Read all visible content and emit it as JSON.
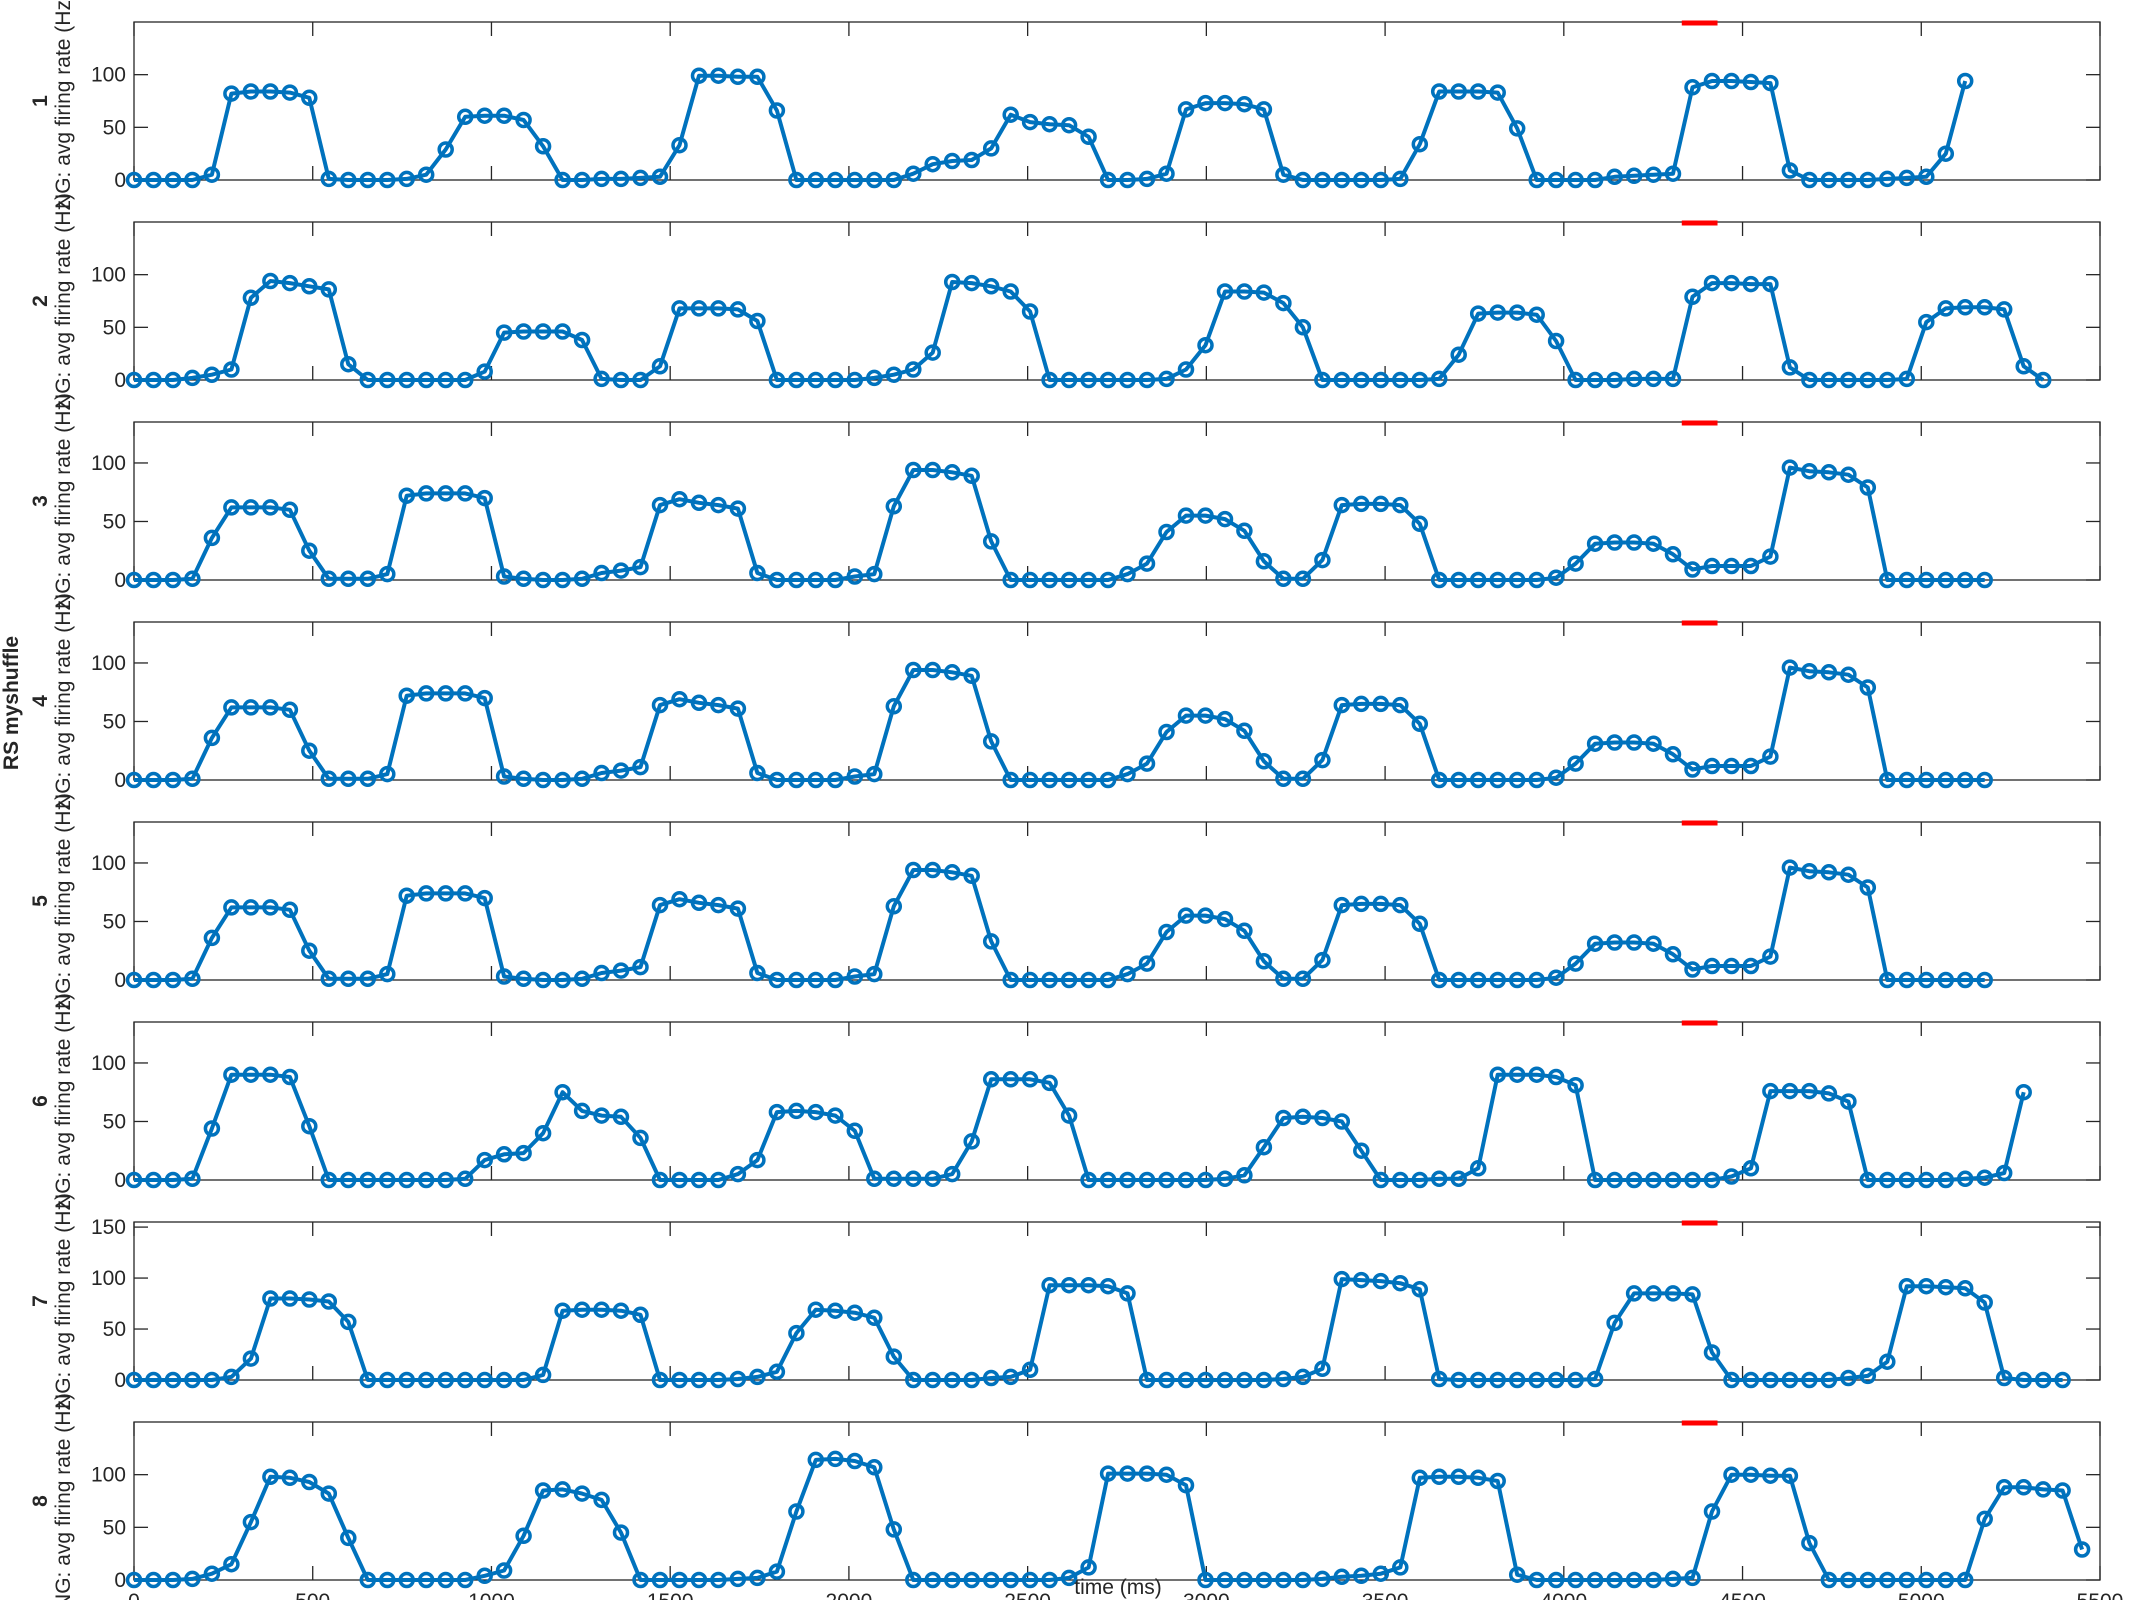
{
  "figure": {
    "suptitle": "RS myshuffle",
    "ylabel": "NG: avg firing rate (Hz)",
    "xlabel": "time (ms)"
  },
  "colors": {
    "series": "#0072BD",
    "stimulus_bar": "#FF0000",
    "axes": "#262626"
  },
  "chart_data": [
    {
      "type": "line",
      "panel_label": "1",
      "ylim": [
        0,
        150
      ],
      "yticks": [
        0,
        50,
        100
      ],
      "values": [
        0,
        0,
        0,
        0,
        5,
        82,
        84,
        84,
        83,
        78,
        1,
        0,
        0,
        0,
        1,
        5,
        29,
        60,
        61,
        61,
        57,
        32,
        0,
        0,
        1,
        1,
        2,
        3,
        33,
        99,
        99,
        98,
        98,
        66,
        0,
        0,
        0,
        0,
        0,
        0,
        6,
        15,
        18,
        19,
        30,
        62,
        55,
        53,
        52,
        41,
        0,
        0,
        1,
        6,
        67,
        73,
        73,
        72,
        67,
        5,
        0,
        0,
        0,
        0,
        0,
        1,
        34,
        84,
        84,
        84,
        83,
        49,
        0,
        0,
        0,
        0,
        3,
        4,
        5,
        6,
        88,
        94,
        94,
        93,
        92,
        9,
        0,
        0,
        0,
        0,
        1,
        2,
        3,
        25,
        94
      ]
    },
    {
      "type": "line",
      "panel_label": "2",
      "ylim": [
        0,
        150
      ],
      "yticks": [
        0,
        50,
        100
      ],
      "values": [
        0,
        0,
        0,
        2,
        5,
        10,
        78,
        94,
        92,
        89,
        86,
        15,
        0,
        0,
        0,
        0,
        0,
        0,
        8,
        45,
        46,
        46,
        46,
        38,
        1,
        0,
        0,
        13,
        68,
        68,
        68,
        67,
        56,
        0,
        0,
        0,
        0,
        0,
        2,
        5,
        10,
        26,
        93,
        92,
        89,
        84,
        65,
        0,
        0,
        0,
        0,
        0,
        0,
        1,
        10,
        33,
        84,
        84,
        83,
        73,
        50,
        0,
        0,
        0,
        0,
        0,
        0,
        1,
        24,
        63,
        64,
        64,
        62,
        37,
        0,
        0,
        0,
        1,
        1,
        1,
        79,
        92,
        92,
        91,
        91,
        12,
        0,
        0,
        0,
        0,
        0,
        1,
        55,
        68,
        69,
        69,
        67,
        13,
        0
      ]
    },
    {
      "type": "line",
      "panel_label": "3",
      "ylim": [
        0,
        135
      ],
      "yticks": [
        0,
        50,
        100
      ],
      "values": [
        0,
        0,
        0,
        1,
        36,
        62,
        62,
        62,
        60,
        25,
        1,
        1,
        1,
        5,
        72,
        74,
        74,
        74,
        70,
        3,
        1,
        0,
        0,
        1,
        6,
        8,
        11,
        64,
        69,
        66,
        64,
        61,
        6,
        0,
        0,
        0,
        0,
        3,
        5,
        63,
        94,
        94,
        92,
        89,
        33,
        0,
        0,
        0,
        0,
        0,
        0,
        5,
        14,
        41,
        55,
        55,
        52,
        42,
        16,
        1,
        1,
        17,
        64,
        65,
        65,
        64,
        48,
        0,
        0,
        0,
        0,
        0,
        0,
        2,
        14,
        31,
        32,
        32,
        31,
        22,
        9,
        12,
        12,
        12,
        20,
        96,
        93,
        92,
        90,
        79,
        0,
        0,
        0,
        0,
        0,
        0
      ]
    },
    {
      "type": "line",
      "panel_label": "4",
      "ylim": [
        0,
        135
      ],
      "yticks": [
        0,
        50,
        100
      ],
      "values": [
        0,
        0,
        0,
        1,
        36,
        62,
        62,
        62,
        60,
        25,
        1,
        1,
        1,
        5,
        72,
        74,
        74,
        74,
        70,
        3,
        1,
        0,
        0,
        1,
        6,
        8,
        11,
        64,
        69,
        66,
        64,
        61,
        6,
        0,
        0,
        0,
        0,
        3,
        5,
        63,
        94,
        94,
        92,
        89,
        33,
        0,
        0,
        0,
        0,
        0,
        0,
        5,
        14,
        41,
        55,
        55,
        52,
        42,
        16,
        1,
        1,
        17,
        64,
        65,
        65,
        64,
        48,
        0,
        0,
        0,
        0,
        0,
        0,
        2,
        14,
        31,
        32,
        32,
        31,
        22,
        9,
        12,
        12,
        12,
        20,
        96,
        93,
        92,
        90,
        79,
        0,
        0,
        0,
        0,
        0,
        0
      ]
    },
    {
      "type": "line",
      "panel_label": "5",
      "ylim": [
        0,
        135
      ],
      "yticks": [
        0,
        50,
        100
      ],
      "values": [
        0,
        0,
        0,
        1,
        36,
        62,
        62,
        62,
        60,
        25,
        1,
        1,
        1,
        5,
        72,
        74,
        74,
        74,
        70,
        3,
        1,
        0,
        0,
        1,
        6,
        8,
        11,
        64,
        69,
        66,
        64,
        61,
        6,
        0,
        0,
        0,
        0,
        3,
        5,
        63,
        94,
        94,
        92,
        89,
        33,
        0,
        0,
        0,
        0,
        0,
        0,
        5,
        14,
        41,
        55,
        55,
        52,
        42,
        16,
        1,
        1,
        17,
        64,
        65,
        65,
        64,
        48,
        0,
        0,
        0,
        0,
        0,
        0,
        2,
        14,
        31,
        32,
        32,
        31,
        22,
        9,
        12,
        12,
        12,
        20,
        96,
        93,
        92,
        90,
        79,
        0,
        0,
        0,
        0,
        0,
        0
      ]
    },
    {
      "type": "line",
      "panel_label": "6",
      "ylim": [
        0,
        135
      ],
      "yticks": [
        0,
        50,
        100
      ],
      "values": [
        0,
        0,
        0,
        1,
        44,
        90,
        90,
        90,
        88,
        46,
        0,
        0,
        0,
        0,
        0,
        0,
        0,
        1,
        17,
        22,
        23,
        40,
        75,
        59,
        55,
        54,
        36,
        0,
        0,
        0,
        0,
        5,
        17,
        58,
        59,
        58,
        55,
        42,
        1,
        1,
        1,
        1,
        5,
        33,
        86,
        86,
        86,
        83,
        55,
        0,
        0,
        0,
        0,
        0,
        0,
        0,
        1,
        4,
        28,
        53,
        54,
        53,
        50,
        25,
        0,
        0,
        0,
        1,
        1,
        10,
        90,
        90,
        90,
        88,
        81,
        0,
        0,
        0,
        0,
        0,
        0,
        0,
        3,
        10,
        76,
        76,
        76,
        74,
        67,
        0,
        0,
        0,
        0,
        0,
        1,
        2,
        6,
        75
      ]
    },
    {
      "type": "line",
      "panel_label": "7",
      "ylim": [
        0,
        155
      ],
      "yticks": [
        0,
        50,
        100,
        150
      ],
      "values": [
        0,
        0,
        0,
        0,
        0,
        3,
        21,
        80,
        80,
        79,
        77,
        57,
        0,
        0,
        0,
        0,
        0,
        0,
        0,
        0,
        0,
        5,
        68,
        69,
        69,
        68,
        64,
        0,
        0,
        0,
        0,
        1,
        3,
        8,
        46,
        69,
        68,
        66,
        61,
        23,
        0,
        0,
        0,
        0,
        2,
        3,
        10,
        93,
        93,
        93,
        92,
        85,
        0,
        0,
        0,
        0,
        0,
        0,
        0,
        1,
        3,
        11,
        99,
        98,
        97,
        95,
        89,
        1,
        0,
        0,
        0,
        0,
        0,
        0,
        0,
        1,
        56,
        85,
        85,
        85,
        84,
        27,
        0,
        0,
        0,
        0,
        0,
        0,
        2,
        4,
        18,
        92,
        92,
        91,
        90,
        76,
        2,
        0,
        0,
        0
      ]
    },
    {
      "type": "line",
      "panel_label": "8",
      "ylim": [
        0,
        150
      ],
      "yticks": [
        0,
        50,
        100
      ],
      "values": [
        0,
        0,
        0,
        1,
        6,
        15,
        55,
        98,
        97,
        93,
        82,
        40,
        0,
        0,
        0,
        0,
        0,
        0,
        4,
        9,
        42,
        85,
        86,
        82,
        76,
        45,
        0,
        0,
        0,
        0,
        0,
        1,
        2,
        8,
        65,
        114,
        115,
        113,
        107,
        48,
        0,
        0,
        0,
        0,
        0,
        0,
        0,
        0,
        2,
        12,
        101,
        101,
        101,
        100,
        90,
        0,
        0,
        0,
        0,
        0,
        0,
        1,
        3,
        4,
        6,
        12,
        97,
        98,
        98,
        97,
        94,
        5,
        0,
        0,
        0,
        0,
        0,
        0,
        0,
        1,
        2,
        65,
        100,
        100,
        99,
        99,
        35,
        0,
        0,
        0,
        0,
        0,
        0,
        0,
        0,
        58,
        88,
        88,
        86,
        85,
        29
      ]
    }
  ],
  "shared_x": {
    "start": 0,
    "step": 54.5,
    "xlim": [
      0,
      5500
    ],
    "xticks": [
      0,
      500,
      1000,
      1500,
      2000,
      2500,
      3000,
      3500,
      4000,
      4500,
      5000,
      5500
    ]
  },
  "stimulus_marker": {
    "x_start": 4330,
    "x_end": 4430
  }
}
